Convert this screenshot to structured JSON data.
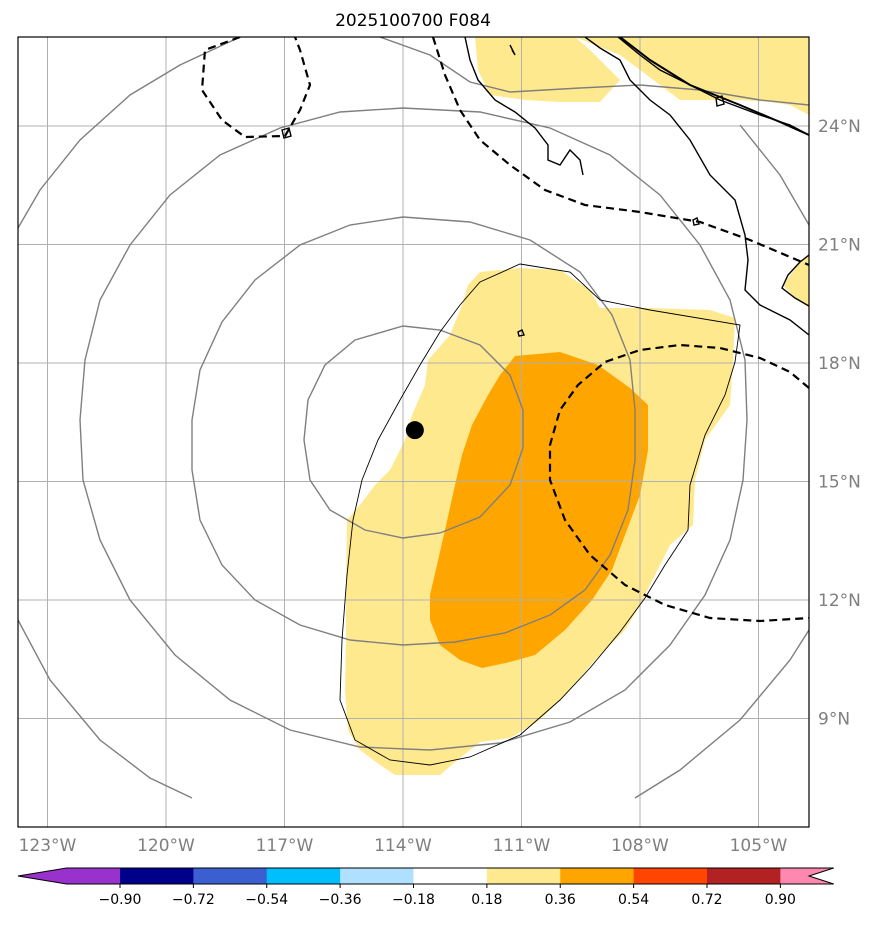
{
  "title": "2025100700 F084",
  "colors": {
    "fill_light": "#ffe98f",
    "fill_medium": "#ffa500",
    "land": "#ffe98f",
    "gridline": "#b0b0b0",
    "contour": "#7f7f7f",
    "coast": "#000000",
    "dashed": "#000000",
    "marker": "#000000"
  },
  "map": {
    "lon_ticks": [
      "123°W",
      "120°W",
      "117°W",
      "114°W",
      "111°W",
      "108°W",
      "105°W"
    ],
    "lat_ticks": [
      "24°N",
      "21°N",
      "18°N",
      "15°N",
      "12°N",
      "9°N"
    ],
    "lon_values": [
      -123,
      -120,
      -117,
      -114,
      -111,
      -108,
      -105
    ],
    "lat_values": [
      24,
      21,
      18,
      15,
      12,
      9
    ],
    "storm_center": {
      "lon": -113.7,
      "lat": 16.3,
      "icon": "storm-center-dot-icon"
    }
  },
  "colorbar": {
    "colors": [
      "#9932cc",
      "#00008b",
      "#3b5fd0",
      "#00bfff",
      "#b0e0ff",
      "#ffffff",
      "#ffe98f",
      "#ffa500",
      "#ff4500",
      "#b22222",
      "#ff88b0"
    ],
    "labels": [
      "−0.90",
      "−0.72",
      "−0.54",
      "−0.36",
      "−0.18",
      "0.18",
      "0.36",
      "0.54",
      "0.72",
      "0.90"
    ],
    "levels": [
      -0.9,
      -0.72,
      -0.54,
      -0.36,
      -0.18,
      0.18,
      0.36,
      0.54,
      0.72,
      0.9
    ]
  }
}
